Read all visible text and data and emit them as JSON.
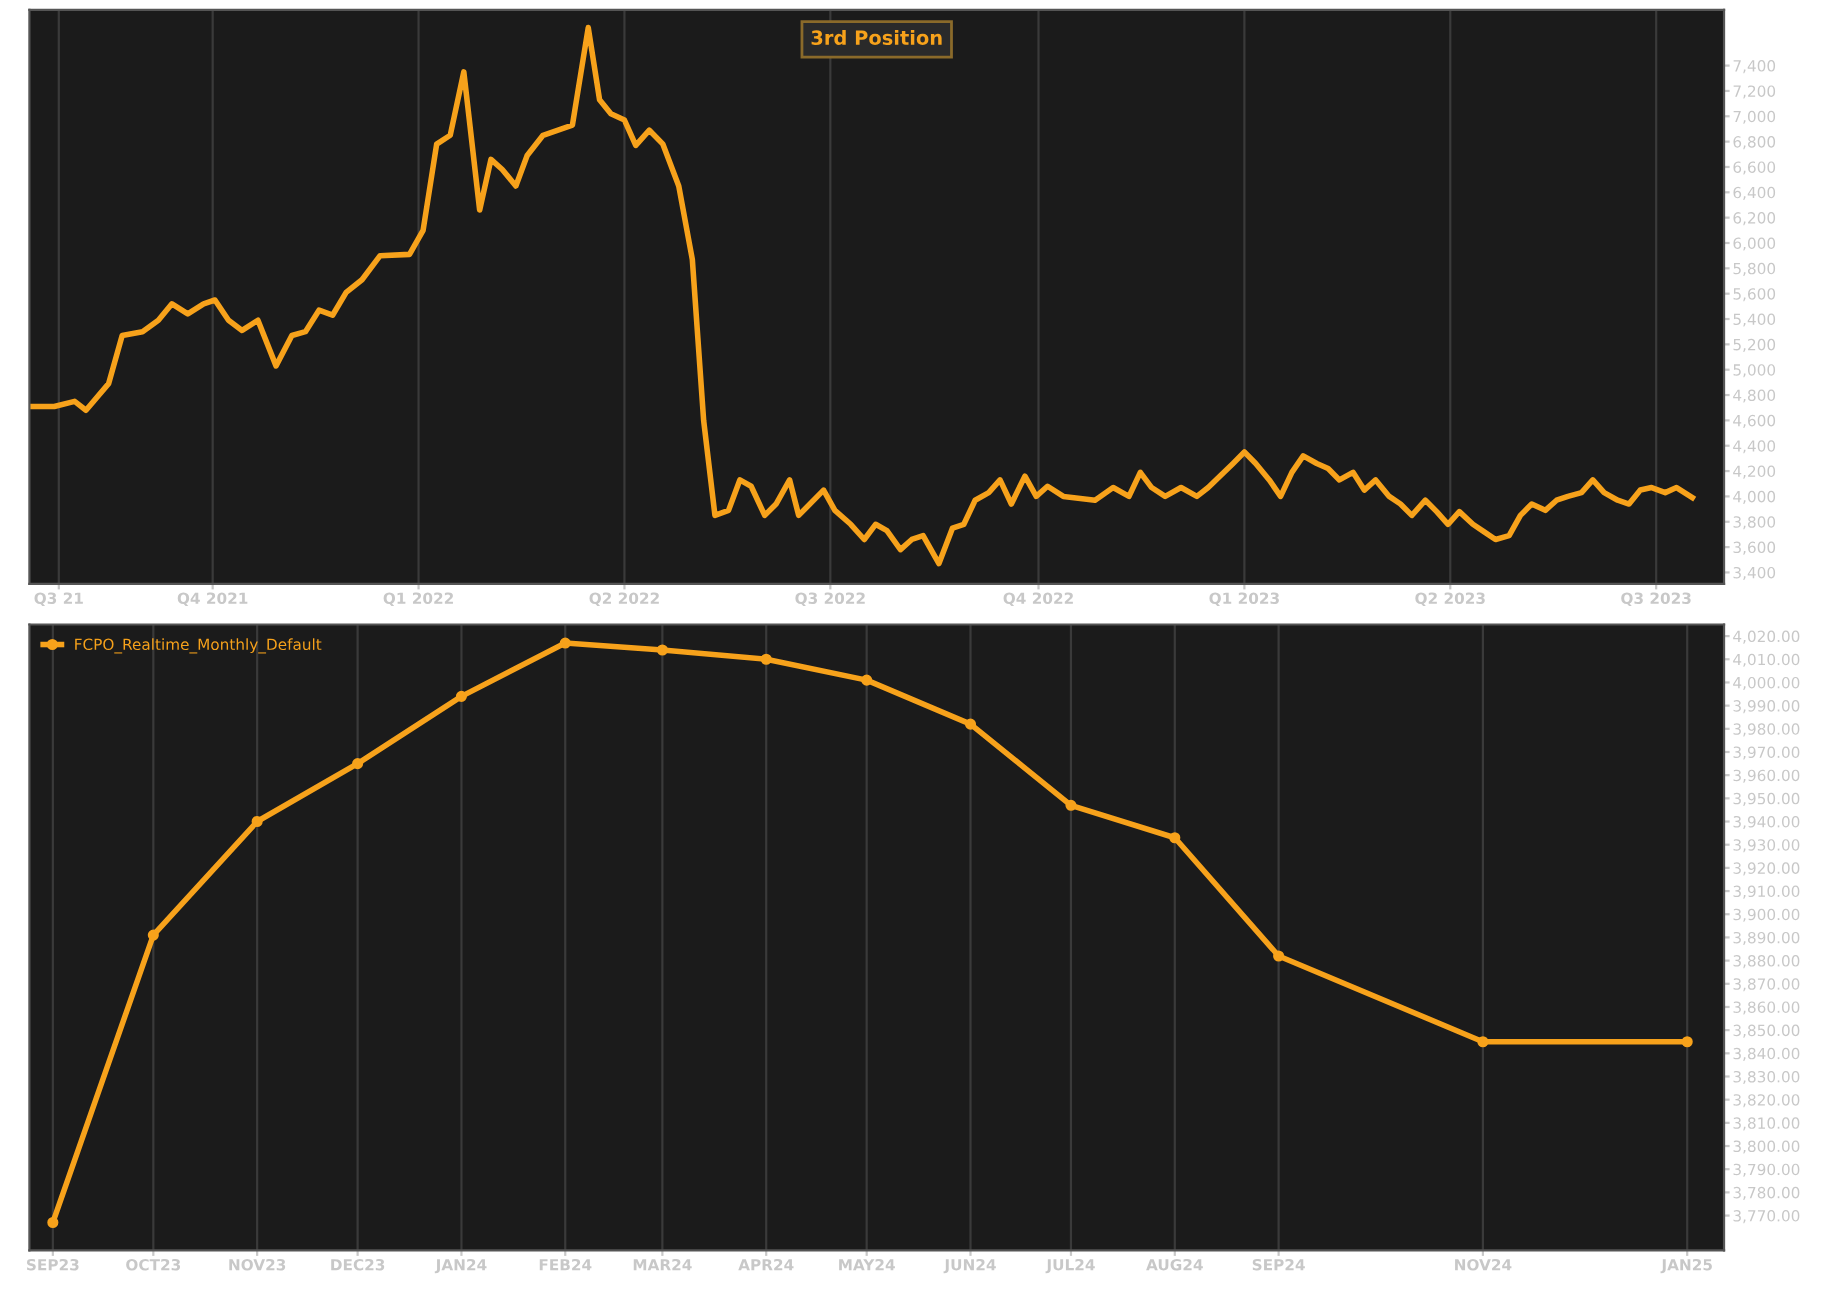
{
  "chart_data": [
    {
      "type": "line",
      "title": "3rd Position",
      "legend": false,
      "grid": "x",
      "marker": "none",
      "line_style": "solid",
      "x": [
        "2021-08-26",
        "2021-09-06",
        "2021-09-15",
        "2021-09-20",
        "2021-09-30",
        "2021-10-06",
        "2021-10-15",
        "2021-10-22",
        "2021-10-28",
        "2021-11-04",
        "2021-11-11",
        "2021-11-16",
        "2021-11-22",
        "2021-11-28",
        "2021-12-05",
        "2021-12-13",
        "2021-12-20",
        "2021-12-26",
        "2022-01-01",
        "2022-01-07",
        "2022-01-13",
        "2022-01-20",
        "2022-01-28",
        "2022-02-10",
        "2022-02-16",
        "2022-02-22",
        "2022-02-28",
        "2022-03-06",
        "2022-03-13",
        "2022-03-18",
        "2022-03-23",
        "2022-03-29",
        "2022-04-03",
        "2022-04-10",
        "2022-04-23",
        "2022-04-30",
        "2022-05-05",
        "2022-05-10",
        "2022-05-16",
        "2022-05-21",
        "2022-05-27",
        "2022-06-02",
        "2022-06-09",
        "2022-06-15",
        "2022-06-20",
        "2022-06-25",
        "2022-07-01",
        "2022-07-06",
        "2022-07-11",
        "2022-07-17",
        "2022-07-22",
        "2022-07-28",
        "2022-08-01",
        "2022-08-12",
        "2022-08-17",
        "2022-08-24",
        "2022-08-30",
        "2022-09-04",
        "2022-09-09",
        "2022-09-15",
        "2022-09-20",
        "2022-09-25",
        "2022-10-02",
        "2022-10-08",
        "2022-10-13",
        "2022-10-18",
        "2022-10-24",
        "2022-10-29",
        "2022-11-03",
        "2022-11-09",
        "2022-11-14",
        "2022-11-19",
        "2022-11-26",
        "2022-12-10",
        "2022-12-18",
        "2022-12-25",
        "2022-12-30",
        "2023-01-04",
        "2023-01-10",
        "2023-01-17",
        "2023-01-24",
        "2023-01-29",
        "2023-02-09",
        "2023-02-14",
        "2023-02-19",
        "2023-02-25",
        "2023-03-02",
        "2023-03-07",
        "2023-03-12",
        "2023-03-18",
        "2023-03-23",
        "2023-03-28",
        "2023-04-03",
        "2023-04-08",
        "2023-04-13",
        "2023-04-19",
        "2023-04-24",
        "2023-04-29",
        "2023-05-05",
        "2023-05-10",
        "2023-05-15",
        "2023-05-20",
        "2023-05-26",
        "2023-05-31",
        "2023-06-05",
        "2023-06-11",
        "2023-06-16",
        "2023-06-21",
        "2023-06-27",
        "2023-07-02",
        "2023-07-07",
        "2023-07-13",
        "2023-07-18",
        "2023-07-23",
        "2023-07-29",
        "2023-08-03",
        "2023-08-08",
        "2023-08-13",
        "2023-08-19",
        "2023-08-24",
        "2023-08-31"
      ],
      "series": [
        {
          "color": "#f7a21b",
          "values": [
            4710,
            4710,
            4750,
            4680,
            4890,
            5270,
            5300,
            5390,
            5520,
            5440,
            5520,
            5550,
            5390,
            5310,
            5390,
            5030,
            5270,
            5300,
            5470,
            5430,
            5610,
            5710,
            5900,
            5910,
            6100,
            6780,
            6850,
            7350,
            6260,
            6660,
            6580,
            6450,
            6690,
            6850,
            6930,
            7700,
            7130,
            7020,
            6970,
            6770,
            6890,
            6780,
            6450,
            5870,
            4600,
            3850,
            3890,
            4130,
            4080,
            3850,
            3940,
            4130,
            3850,
            4050,
            3890,
            3780,
            3660,
            3780,
            3730,
            3580,
            3660,
            3690,
            3470,
            3750,
            3780,
            3970,
            4030,
            4130,
            3940,
            4160,
            4000,
            4080,
            4000,
            3970,
            4070,
            4000,
            4190,
            4070,
            4000,
            4070,
            4000,
            4070,
            4260,
            4350,
            4260,
            4130,
            4000,
            4190,
            4320,
            4260,
            4220,
            4130,
            4190,
            4050,
            4130,
            4000,
            3940,
            3850,
            3970,
            3880,
            3780,
            3880,
            3780,
            3720,
            3660,
            3690,
            3850,
            3940,
            3890,
            3970,
            4000,
            4030,
            4130,
            4030,
            3970,
            3940,
            4050,
            4070,
            4030,
            4070,
            3990
          ]
        }
      ],
      "xlim": [
        "2021-08-26",
        "2023-09-14"
      ],
      "xticks": [
        {
          "value": "2021-09-08",
          "label": "Q3 21"
        },
        {
          "value": "2021-11-15",
          "label": "Q4 2021"
        },
        {
          "value": "2022-02-14",
          "label": "Q1 2022"
        },
        {
          "value": "2022-05-16",
          "label": "Q2 2022"
        },
        {
          "value": "2022-08-15",
          "label": "Q3 2022"
        },
        {
          "value": "2022-11-15",
          "label": "Q4 2022"
        },
        {
          "value": "2023-02-14",
          "label": "Q1 2023"
        },
        {
          "value": "2023-05-16",
          "label": "Q2 2023"
        },
        {
          "value": "2023-08-15",
          "label": "Q3 2023"
        }
      ],
      "ylim": [
        3310,
        7840
      ],
      "yticks": [
        {
          "value": 3400,
          "label": "3,400"
        },
        {
          "value": 3600,
          "label": "3,600"
        },
        {
          "value": 3800,
          "label": "3,800"
        },
        {
          "value": 4000,
          "label": "4,000"
        },
        {
          "value": 4200,
          "label": "4,200"
        },
        {
          "value": 4400,
          "label": "4,400"
        },
        {
          "value": 4600,
          "label": "4,600"
        },
        {
          "value": 4800,
          "label": "4,800"
        },
        {
          "value": 5000,
          "label": "5,000"
        },
        {
          "value": 5200,
          "label": "5,200"
        },
        {
          "value": 5400,
          "label": "5,400"
        },
        {
          "value": 5600,
          "label": "5,600"
        },
        {
          "value": 5800,
          "label": "5,800"
        },
        {
          "value": 6000,
          "label": "6,000"
        },
        {
          "value": 6200,
          "label": "6,200"
        },
        {
          "value": 6400,
          "label": "6,400"
        },
        {
          "value": 6600,
          "label": "6,600"
        },
        {
          "value": 6800,
          "label": "6,800"
        },
        {
          "value": 7000,
          "label": "7,000"
        },
        {
          "value": 7200,
          "label": "7,200"
        },
        {
          "value": 7400,
          "label": "7,400"
        }
      ]
    },
    {
      "type": "line",
      "legend": "top left",
      "grid": "x",
      "marker": "circle",
      "line_style": "solid",
      "x": [
        "2023-09",
        "2023-10",
        "2023-11",
        "2023-12",
        "2024-01",
        "2024-02",
        "2024-03",
        "2024-04",
        "2024-05",
        "2024-06",
        "2024-07",
        "2024-08",
        "2024-09",
        "2024-11",
        "2025-01"
      ],
      "series": [
        {
          "name": "FCPO_Realtime_Monthly_Default",
          "color": "#f7a21b",
          "values": [
            3767,
            3891,
            3940,
            3965,
            3994,
            4017,
            4014,
            4010,
            4001,
            3982,
            3947,
            3933,
            3882,
            3845,
            3845
          ]
        }
      ],
      "xlim": [
        "2023-08-25",
        "2025-01-12"
      ],
      "xticks": [
        {
          "value": "2023-09",
          "label": "SEP23"
        },
        {
          "value": "2023-10",
          "label": "OCT23"
        },
        {
          "value": "2023-11",
          "label": "NOV23"
        },
        {
          "value": "2023-12",
          "label": "DEC23"
        },
        {
          "value": "2024-01",
          "label": "JAN24"
        },
        {
          "value": "2024-02",
          "label": "FEB24"
        },
        {
          "value": "2024-03",
          "label": "MAR24"
        },
        {
          "value": "2024-04",
          "label": "APR24"
        },
        {
          "value": "2024-05",
          "label": "MAY24"
        },
        {
          "value": "2024-06",
          "label": "JUN24"
        },
        {
          "value": "2024-07",
          "label": "JUL24"
        },
        {
          "value": "2024-08",
          "label": "AUG24"
        },
        {
          "value": "2024-09",
          "label": "SEP24"
        },
        {
          "value": "2024-11",
          "label": "NOV24"
        },
        {
          "value": "2025-01",
          "label": "JAN25"
        }
      ],
      "ylim": [
        3755,
        4025
      ],
      "yticks": [
        {
          "value": 3770,
          "label": "3,770.00"
        },
        {
          "value": 3780,
          "label": "3,780.00"
        },
        {
          "value": 3790,
          "label": "3,790.00"
        },
        {
          "value": 3800,
          "label": "3,800.00"
        },
        {
          "value": 3810,
          "label": "3,810.00"
        },
        {
          "value": 3820,
          "label": "3,820.00"
        },
        {
          "value": 3830,
          "label": "3,830.00"
        },
        {
          "value": 3840,
          "label": "3,840.00"
        },
        {
          "value": 3850,
          "label": "3,850.00"
        },
        {
          "value": 3860,
          "label": "3,860.00"
        },
        {
          "value": 3870,
          "label": "3,870.00"
        },
        {
          "value": 3880,
          "label": "3,880.00"
        },
        {
          "value": 3890,
          "label": "3,890.00"
        },
        {
          "value": 3900,
          "label": "3,900.00"
        },
        {
          "value": 3910,
          "label": "3,910.00"
        },
        {
          "value": 3920,
          "label": "3,920.00"
        },
        {
          "value": 3930,
          "label": "3,930.00"
        },
        {
          "value": 3940,
          "label": "3,940.00"
        },
        {
          "value": 3950,
          "label": "3,950.00"
        },
        {
          "value": 3960,
          "label": "3,960.00"
        },
        {
          "value": 3970,
          "label": "3,970.00"
        },
        {
          "value": 3980,
          "label": "3,980.00"
        },
        {
          "value": 3990,
          "label": "3,990.00"
        },
        {
          "value": 4000,
          "label": "4,000.00"
        },
        {
          "value": 4010,
          "label": "4,010.00"
        },
        {
          "value": 4020,
          "label": "4,020.00"
        }
      ]
    }
  ]
}
